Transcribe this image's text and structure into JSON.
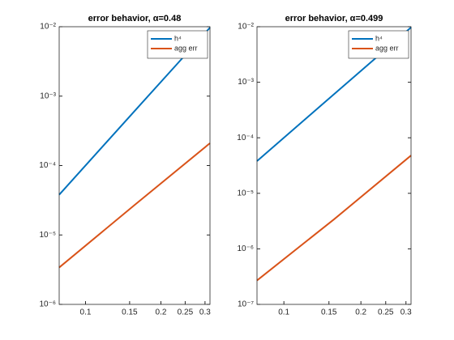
{
  "chart_data": [
    {
      "type": "line",
      "title": "error behavior, α=0.48",
      "log_x": true,
      "log_y": true,
      "grid": false,
      "legend_location": "northeast",
      "x": [
        0.0785,
        0.157,
        0.314
      ],
      "series": [
        {
          "name": "h⁴",
          "color": "#0072bd",
          "values": [
            3.8e-05,
            0.00061,
            0.0097
          ]
        },
        {
          "name": "agg err",
          "color": "#d95319",
          "values": [
            3.4e-06,
            2.7e-05,
            0.00021
          ]
        }
      ],
      "xlim": [
        0.0785,
        0.314
      ],
      "xticks": [
        0.1,
        0.15,
        0.2,
        0.25,
        0.3
      ],
      "ylim": [
        1e-06,
        0.01
      ],
      "yticks": [
        {
          "value": 1e-06,
          "label": "10⁻⁶"
        },
        {
          "value": 1e-05,
          "label": "10⁻⁵"
        },
        {
          "value": 0.0001,
          "label": "10⁻⁴"
        },
        {
          "value": 0.001,
          "label": "10⁻³"
        },
        {
          "value": 0.01,
          "label": "10⁻²"
        }
      ]
    },
    {
      "type": "line",
      "title": "error behavior, α=0.499",
      "log_x": true,
      "log_y": true,
      "grid": false,
      "legend_location": "northeast",
      "x": [
        0.0785,
        0.157,
        0.314
      ],
      "series": [
        {
          "name": "h⁴",
          "color": "#0072bd",
          "values": [
            3.8e-05,
            0.00061,
            0.0097
          ]
        },
        {
          "name": "agg err",
          "color": "#d95319",
          "values": [
            2.7e-07,
            3.4e-06,
            4.8e-05
          ]
        }
      ],
      "xlim": [
        0.0785,
        0.314
      ],
      "xticks": [
        0.1,
        0.15,
        0.2,
        0.25,
        0.3
      ],
      "ylim": [
        1e-07,
        0.01
      ],
      "yticks": [
        {
          "value": 1e-07,
          "label": "10⁻⁷"
        },
        {
          "value": 1e-06,
          "label": "10⁻⁶"
        },
        {
          "value": 1e-05,
          "label": "10⁻⁵"
        },
        {
          "value": 0.0001,
          "label": "10⁻⁴"
        },
        {
          "value": 0.001,
          "label": "10⁻³"
        },
        {
          "value": 0.01,
          "label": "10⁻²"
        }
      ]
    }
  ]
}
